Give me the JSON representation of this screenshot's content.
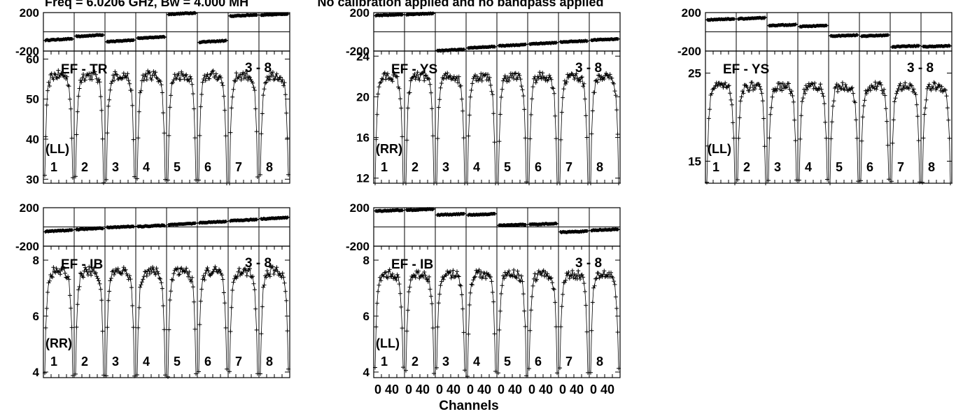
{
  "header": {
    "title_left": "Freq = 6.0206 GHz, Bw = 4.000 MH",
    "title_right": "No calibration applied and no bandpass applied"
  },
  "x_axis": {
    "label": "Channels",
    "tick_labels": [
      "0",
      "40",
      "0",
      "40",
      "0",
      "40",
      "0",
      "40",
      "0",
      "40",
      "0",
      "40",
      "0",
      "40",
      "0",
      "40"
    ]
  },
  "chart_data": [
    {
      "type": "line",
      "baseline": "EF - TR",
      "pair_label": "3 - 8",
      "polarization": "(LL)",
      "spw_labels": [
        "1",
        "2",
        "3",
        "4",
        "5",
        "6",
        "7",
        "8"
      ],
      "phase_ylim": [
        -200,
        200
      ],
      "phase_ticks": [
        "200",
        "-200"
      ],
      "phase_per_spw": [
        -80,
        -40,
        -95,
        -60,
        190,
        -100,
        170,
        180
      ],
      "phase_slope": 15,
      "amp_ylim": [
        29,
        62
      ],
      "amp_ticks": [
        {
          "v": 60,
          "t": "60"
        },
        {
          "v": 50,
          "t": "50"
        },
        {
          "v": 40,
          "t": "40"
        },
        {
          "v": 30,
          "t": "30"
        }
      ],
      "amp_level": 56,
      "amp_dip": 30,
      "amp_noise": 2.4
    },
    {
      "type": "line",
      "baseline": "EF - YS",
      "pair_label": "3 - 8",
      "polarization": "(RR)",
      "spw_labels": [
        "1",
        "2",
        "3",
        "4",
        "5",
        "6",
        "7",
        "8"
      ],
      "phase_ylim": [
        -200,
        200
      ],
      "phase_ticks": [
        "200",
        "-200"
      ],
      "phase_per_spw": [
        175,
        185,
        -190,
        -160,
        -140,
        -120,
        -100,
        -80
      ],
      "phase_slope": 12,
      "amp_ylim": [
        11.5,
        24.5
      ],
      "amp_ticks": [
        {
          "v": 24,
          "t": "24"
        },
        {
          "v": 20,
          "t": "20"
        },
        {
          "v": 16,
          "t": "16"
        },
        {
          "v": 12,
          "t": "12"
        }
      ],
      "amp_level": 22,
      "amp_dip": 11.5,
      "amp_noise": 0.9
    },
    {
      "type": "line",
      "baseline": "EF - YS",
      "pair_label": "3 - 8",
      "polarization": "(LL)",
      "spw_labels": [
        "1",
        "2",
        "3",
        "4",
        "5",
        "6",
        "7",
        "8"
      ],
      "phase_ylim": [
        -200,
        200
      ],
      "phase_ticks": [
        "200",
        "-200"
      ],
      "phase_per_spw": [
        130,
        140,
        70,
        60,
        -40,
        -40,
        -150,
        -150
      ],
      "phase_slope": 10,
      "amp_ylim": [
        12.5,
        27.5
      ],
      "amp_ticks": [
        {
          "v": 25,
          "t": "25"
        },
        {
          "v": 15,
          "t": "15"
        }
      ],
      "amp_level": 23.5,
      "amp_dip": 12.5,
      "amp_noise": 1.0
    },
    {
      "type": "line",
      "baseline": "EF - IB",
      "pair_label": "3 - 8",
      "polarization": "(RR)",
      "spw_labels": [
        "1",
        "2",
        "3",
        "4",
        "5",
        "6",
        "7",
        "8"
      ],
      "phase_ylim": [
        -200,
        200
      ],
      "phase_ticks": [
        "200",
        "-200"
      ],
      "phase_per_spw": [
        -40,
        -20,
        0,
        10,
        30,
        50,
        70,
        90
      ],
      "phase_slope": 14,
      "amp_ylim": [
        3.8,
        8.5
      ],
      "amp_ticks": [
        {
          "v": 8,
          "t": "8"
        },
        {
          "v": 6,
          "t": "6"
        },
        {
          "v": 4,
          "t": "4"
        }
      ],
      "amp_level": 7.6,
      "amp_dip": 4.0,
      "amp_noise": 0.35
    },
    {
      "type": "line",
      "baseline": "EF - IB",
      "pair_label": "3 - 8",
      "polarization": "(LL)",
      "spw_labels": [
        "1",
        "2",
        "3",
        "4",
        "5",
        "6",
        "7",
        "8"
      ],
      "phase_ylim": [
        -200,
        200
      ],
      "phase_ticks": [
        "200",
        "-200"
      ],
      "phase_per_spw": [
        170,
        180,
        130,
        130,
        20,
        30,
        -50,
        -30
      ],
      "phase_slope": 10,
      "amp_ylim": [
        3.8,
        8.5
      ],
      "amp_ticks": [
        {
          "v": 8,
          "t": "8"
        },
        {
          "v": 6,
          "t": "6"
        },
        {
          "v": 4,
          "t": "4"
        }
      ],
      "amp_level": 7.5,
      "amp_dip": 4.0,
      "amp_noise": 0.35
    }
  ]
}
